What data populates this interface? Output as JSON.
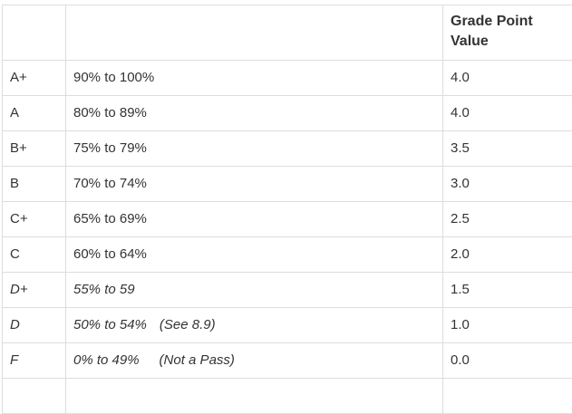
{
  "table": {
    "headers": [
      "",
      "",
      "Grade Point Value"
    ],
    "rows": [
      {
        "grade": "A+",
        "range": "90% to 100%",
        "note": "",
        "gpv": "4.0",
        "italic": false
      },
      {
        "grade": "A",
        "range": "80% to 89%",
        "note": "",
        "gpv": "4.0",
        "italic": false
      },
      {
        "grade": "B+",
        "range": "75% to 79%",
        "note": "",
        "gpv": "3.5",
        "italic": false
      },
      {
        "grade": "B",
        "range": "70% to 74%",
        "note": "",
        "gpv": "3.0",
        "italic": false
      },
      {
        "grade": "C+",
        "range": "65% to 69%",
        "note": "",
        "gpv": "2.5",
        "italic": false
      },
      {
        "grade": "C",
        "range": "60% to 64%",
        "note": "",
        "gpv": "2.0",
        "italic": false
      },
      {
        "grade": "D+",
        "range": "55% to 59",
        "note": "",
        "gpv": "1.5",
        "italic": true
      },
      {
        "grade": "D",
        "range": "50% to 54%",
        "note": "(See 8.9)",
        "gpv": "1.0",
        "italic": true
      },
      {
        "grade": "F",
        "range": "0% to 49%",
        "note": "(Not a Pass)",
        "gpv": "0.0",
        "italic": true
      }
    ]
  }
}
